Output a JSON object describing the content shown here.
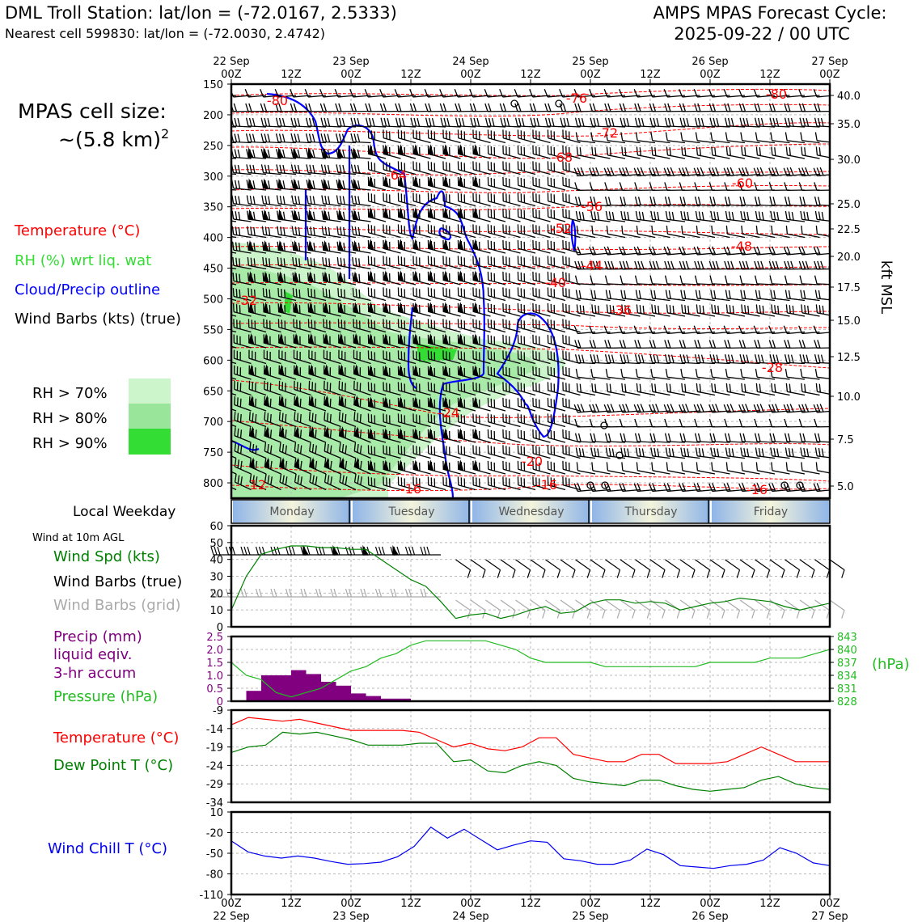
{
  "header": {
    "station_title": "DML Troll Station: lat/lon = (-72.0167, 2.5333)",
    "nearest_cell": "Nearest cell 599830: lat/lon = (-72.0030, 2.4742)",
    "forecast_title": "AMPS MPAS Forecast Cycle:",
    "forecast_cycle": "2025-09-22 / 00 UTC"
  },
  "left_labels": {
    "cell_size_title": "MPAS cell size:",
    "cell_size_value": "~(5.8 km)",
    "cell_size_exp": "2",
    "temperature": "Temperature (°C)",
    "rh": "RH (%) wrt liq. wat",
    "cloud": "Cloud/Precip outline",
    "wind_barbs": "Wind Barbs (kts) (true)",
    "rh70": "RH > 70%",
    "rh80": "RH > 80%",
    "rh90": "RH > 90%",
    "local_weekday": "Local Weekday",
    "wind_10m": "Wind at 10m AGL",
    "wind_spd": "Wind Spd (kts)",
    "wind_barbs_true": "Wind Barbs (true)",
    "wind_barbs_grid": "Wind Barbs (grid)",
    "precip_1": "Precip (mm)",
    "precip_2": "liquid eqiv.",
    "precip_3": "3-hr accum",
    "pressure": "Pressure (hPa)",
    "pressure_unit": "(hPa)",
    "temp2": "Temperature (°C)",
    "dewpoint": "Dew Point T (°C)",
    "windchill": "Wind Chill T (°C)",
    "kft_msl": "kft MSL"
  },
  "colors": {
    "temperature": "#ff0000",
    "rh": "#33dd33",
    "cloud": "#0000ff",
    "pressure": "#22bb22",
    "precip": "#800080",
    "dewpoint": "#008000",
    "windchill": "#0000ee",
    "grid_barb": "#aaaaaa"
  },
  "time_axis": {
    "top": [
      {
        "day": "22 Sep",
        "hour": "00Z"
      },
      {
        "day": "",
        "hour": "12Z"
      },
      {
        "day": "23 Sep",
        "hour": "00Z"
      },
      {
        "day": "",
        "hour": "12Z"
      },
      {
        "day": "24 Sep",
        "hour": "00Z"
      },
      {
        "day": "",
        "hour": "12Z"
      },
      {
        "day": "25 Sep",
        "hour": "00Z"
      },
      {
        "day": "",
        "hour": "12Z"
      },
      {
        "day": "26 Sep",
        "hour": "00Z"
      },
      {
        "day": "",
        "hour": "12Z"
      },
      {
        "day": "27 Sep",
        "hour": "00Z"
      }
    ],
    "weekdays": [
      "Monday",
      "Tuesday",
      "Wednesday",
      "Thursday",
      "Friday"
    ]
  },
  "chart_data": [
    {
      "type": "cross-section",
      "name": "upper-air",
      "pressure_ticks": [
        "150",
        "200",
        "250",
        "300",
        "350",
        "400",
        "450",
        "500",
        "550",
        "600",
        "650",
        "700",
        "750",
        "800"
      ],
      "kft_ticks": [
        "40.0",
        "35.0",
        "30.0",
        "25.0",
        "22.5",
        "20.0",
        "17.5",
        "15.0",
        "12.5",
        "10.0",
        "7.5",
        "5.0"
      ],
      "temp_contour_labels": [
        "-80",
        "-76",
        "-72",
        "-68",
        "-64",
        "-60",
        "-56",
        "-52",
        "-48",
        "-44",
        "-40",
        "-36",
        "-32",
        "-28",
        "-24",
        "-20",
        "-16",
        "-16",
        "-16",
        "-12",
        "-80"
      ],
      "ylim": [
        150,
        825
      ]
    },
    {
      "type": "line",
      "name": "wind-speed",
      "y_ticks": [
        "60",
        "50",
        "40",
        "30",
        "20",
        "10",
        "0"
      ],
      "ylim": [
        0,
        60
      ],
      "x_hours": [
        0,
        3,
        6,
        9,
        12,
        15,
        18,
        21,
        24,
        27,
        30,
        33,
        36,
        39,
        42,
        45,
        48,
        51,
        54,
        57,
        60,
        63,
        66,
        69,
        72,
        75,
        78,
        81,
        84,
        87,
        90,
        93,
        96,
        99,
        102,
        105,
        108,
        111,
        114,
        117,
        120
      ],
      "series": [
        {
          "values": [
            10,
            30,
            43,
            46,
            48,
            48,
            47,
            47,
            46,
            46,
            40,
            34,
            28,
            24,
            15,
            5,
            7,
            8,
            5,
            7,
            10,
            12,
            8,
            9,
            14,
            16,
            16,
            14,
            15,
            14,
            10,
            12,
            14,
            15,
            17,
            16,
            15,
            12,
            10,
            12,
            14
          ]
        }
      ]
    },
    {
      "type": "bar+line",
      "name": "precip-pressure",
      "precip_ticks": [
        "2.5",
        "2.0",
        "1.5",
        "1.0",
        "0.5",
        "0"
      ],
      "pressure_ticks": [
        "843",
        "840",
        "837",
        "834",
        "831",
        "828"
      ],
      "precip_bars": [
        {
          "start_hour": 3,
          "end_hour": 6,
          "value": 0.4
        },
        {
          "start_hour": 6,
          "end_hour": 9,
          "value": 1.0
        },
        {
          "start_hour": 9,
          "end_hour": 12,
          "value": 1.0
        },
        {
          "start_hour": 12,
          "end_hour": 15,
          "value": 1.2
        },
        {
          "start_hour": 15,
          "end_hour": 18,
          "value": 1.05
        },
        {
          "start_hour": 18,
          "end_hour": 21,
          "value": 0.75
        },
        {
          "start_hour": 21,
          "end_hour": 24,
          "value": 0.6
        },
        {
          "start_hour": 24,
          "end_hour": 27,
          "value": 0.3
        },
        {
          "start_hour": 27,
          "end_hour": 30,
          "value": 0.2
        },
        {
          "start_hour": 30,
          "end_hour": 33,
          "value": 0.1
        },
        {
          "start_hour": 33,
          "end_hour": 36,
          "value": 0.1
        }
      ],
      "pressure_hpa": [
        837,
        834,
        833,
        830,
        829,
        830,
        831,
        833,
        835,
        836,
        838,
        839,
        841,
        842,
        842,
        842,
        842,
        842,
        841,
        840,
        838,
        837,
        837,
        837,
        837,
        836,
        836,
        836,
        836,
        836,
        836,
        836,
        837,
        837,
        837,
        837,
        838,
        838,
        838,
        839,
        840
      ]
    },
    {
      "type": "line",
      "name": "temp-dewpoint",
      "y_ticks": [
        "-9",
        "-14",
        "-19",
        "-24",
        "-29",
        "-34"
      ],
      "ylim": [
        -34,
        -9
      ],
      "series": [
        {
          "name": "Temperature (°C)",
          "values": [
            -13,
            -11,
            -11.5,
            -12,
            -11.5,
            -12.5,
            -13.5,
            -14.5,
            -14.5,
            -14.5,
            -14.5,
            -15,
            -17,
            -19,
            -18,
            -19.5,
            -20,
            -19,
            -16.5,
            -16.5,
            -21,
            -22,
            -23,
            -23,
            -21,
            -21,
            -23.5,
            -23.5,
            -23.5,
            -23,
            -21,
            -19,
            -21,
            -23,
            -23,
            -23
          ]
        },
        {
          "name": "Dew Point T (°C)",
          "values": [
            -20.5,
            -19,
            -18.5,
            -15,
            -15.5,
            -15,
            -16,
            -17,
            -18.5,
            -18.5,
            -18.5,
            -18,
            -18,
            -23,
            -22.5,
            -25.5,
            -26,
            -24,
            -23,
            -24,
            -27.5,
            -28.5,
            -29,
            -29.5,
            -28,
            -28,
            -29.5,
            -30.5,
            -31,
            -30.5,
            -30,
            -28,
            -27,
            -29,
            -30,
            -30.5
          ]
        }
      ]
    },
    {
      "type": "line",
      "name": "wind-chill",
      "y_ticks": [
        "10",
        "-20",
        "-50",
        "-80",
        "-110"
      ],
      "ylim": [
        -110,
        10
      ],
      "series": [
        {
          "name": "Wind Chill T (°C)",
          "values": [
            -32,
            -48,
            -54,
            -57,
            -54,
            -57,
            -62,
            -66,
            -65,
            -63,
            -55,
            -40,
            -12,
            -28,
            -15,
            -30,
            -45,
            -38,
            -32,
            -34,
            -58,
            -61,
            -66,
            -66,
            -60,
            -44,
            -52,
            -68,
            -70,
            -72,
            -68,
            -66,
            -60,
            -42,
            -50,
            -64,
            -68
          ]
        }
      ]
    }
  ]
}
